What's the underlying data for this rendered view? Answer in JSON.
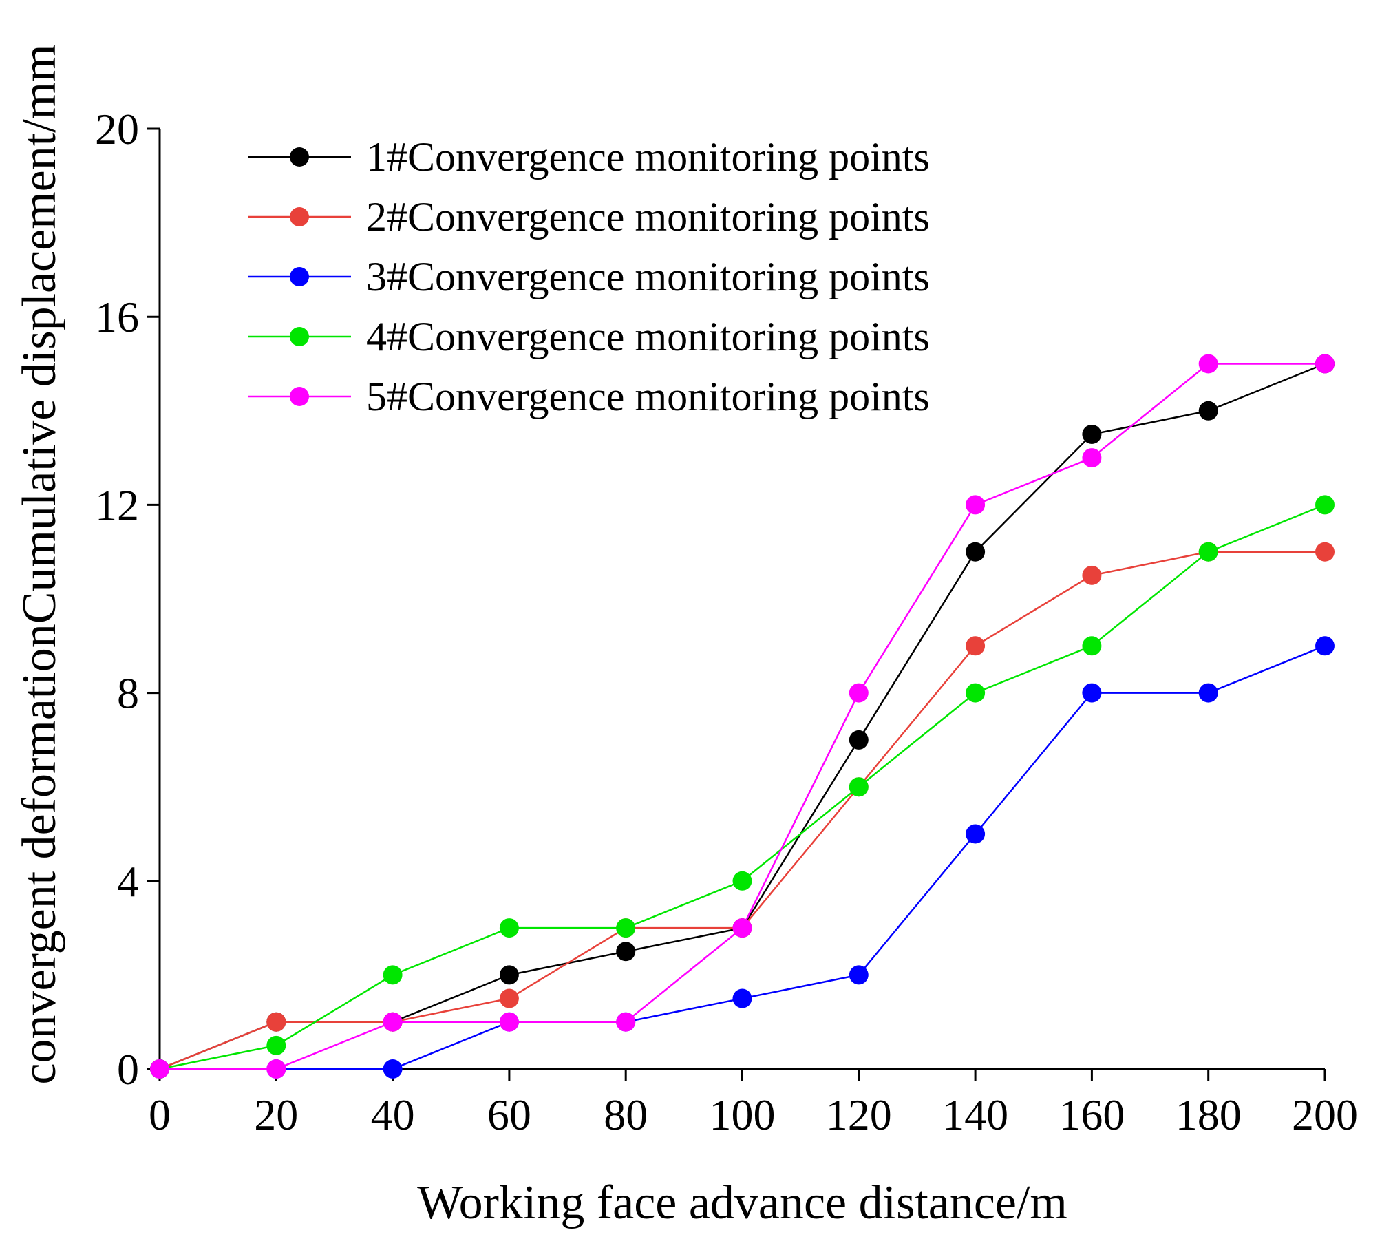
{
  "chart_data": {
    "type": "line",
    "title": "",
    "xlabel": "Working face advance distance/m",
    "ylabel": "convergent deformationCumulative displacement/mm",
    "xlim": [
      0,
      200
    ],
    "ylim": [
      0,
      20
    ],
    "xticks": [
      0,
      20,
      40,
      60,
      80,
      100,
      120,
      140,
      160,
      180,
      200
    ],
    "yticks": [
      0,
      4,
      8,
      12,
      16,
      20
    ],
    "x": [
      0,
      20,
      40,
      60,
      80,
      100,
      120,
      140,
      160,
      180,
      200
    ],
    "legend_position": "top-left",
    "grid": false,
    "series": [
      {
        "name": "1#Convergence monitoring points",
        "color": "#000000",
        "values": [
          0,
          1,
          1,
          2,
          2.5,
          3,
          7,
          11,
          13.5,
          14,
          15
        ]
      },
      {
        "name": "2#Convergence monitoring points",
        "color": "#e8413a",
        "values": [
          0,
          1,
          1,
          1.5,
          3,
          3,
          6,
          9,
          10.5,
          11,
          11
        ]
      },
      {
        "name": "3#Convergence monitoring points",
        "color": "#0000ff",
        "values": [
          0,
          0,
          0,
          1,
          1,
          1.5,
          2,
          5,
          8,
          8,
          9
        ]
      },
      {
        "name": "4#Convergence monitoring points",
        "color": "#00e600",
        "values": [
          0,
          0.5,
          2,
          3,
          3,
          4,
          6,
          8,
          9,
          11,
          12
        ]
      },
      {
        "name": "5#Convergence monitoring points",
        "color": "#ff00ff",
        "values": [
          0,
          0,
          1,
          1,
          1,
          3,
          8,
          12,
          13,
          15,
          15
        ]
      }
    ]
  }
}
